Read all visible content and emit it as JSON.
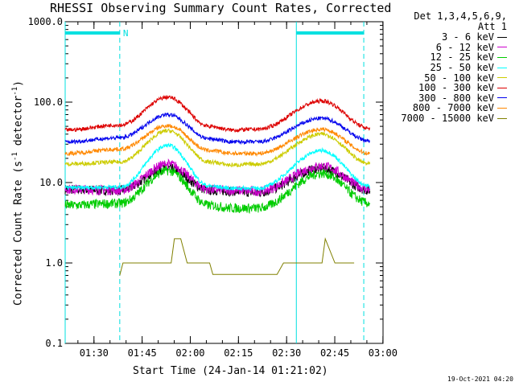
{
  "chart_data": {
    "type": "line",
    "title": "RHESSI Observing Summary Count Rates, Corrected",
    "xlabel": "Start Time (24-Jan-14 01:21:02)",
    "ylabel_main": "Corrected Count Rate (s",
    "ylabel_sup1": "-1",
    "ylabel_mid": " detector",
    "ylabel_sup2": "-1",
    "ylabel_end": ")",
    "y_scale": "log",
    "ylim": [
      0.1,
      1000
    ],
    "y_ticks": [
      "0.1",
      "1.0",
      "10.0",
      "100.0",
      "1000.0"
    ],
    "x_range_minutes": [
      "01:21:02",
      "03:00"
    ],
    "x_ticks": [
      "01:30",
      "01:45",
      "02:00",
      "02:15",
      "02:30",
      "02:45",
      "03:00"
    ],
    "legend_header": [
      "Det 1,3,4,5,6,9,",
      "Att 1"
    ],
    "legend_placement": "right-outside",
    "series": [
      {
        "name": "3 - 6 keV",
        "color": "#000000",
        "values": [
          [
            0,
            8.2
          ],
          [
            17,
            8.0
          ],
          [
            32,
            15
          ],
          [
            45,
            8.0
          ],
          [
            52,
            7.8
          ],
          [
            60,
            7.5
          ],
          [
            80,
            15
          ],
          [
            95,
            8.0
          ]
        ]
      },
      {
        "name": "6 - 12 keV",
        "color": "#cc00cc",
        "values": [
          [
            0,
            8.3
          ],
          [
            17,
            8.0
          ],
          [
            32,
            17
          ],
          [
            45,
            8.2
          ],
          [
            52,
            8.0
          ],
          [
            60,
            7.8
          ],
          [
            80,
            16
          ],
          [
            95,
            8.2
          ]
        ]
      },
      {
        "name": "12 - 25 keV",
        "color": "#00cc00",
        "values": [
          [
            0,
            5.2
          ],
          [
            17,
            5.5
          ],
          [
            32,
            14
          ],
          [
            45,
            5.2
          ],
          [
            52,
            4.8
          ],
          [
            60,
            4.8
          ],
          [
            80,
            13
          ],
          [
            95,
            5.5
          ]
        ]
      },
      {
        "name": "25 - 50 keV",
        "color": "#00ffff",
        "values": [
          [
            0,
            8.6
          ],
          [
            17,
            8.8
          ],
          [
            32,
            29
          ],
          [
            45,
            9.0
          ],
          [
            52,
            8.5
          ],
          [
            60,
            8.5
          ],
          [
            80,
            25
          ],
          [
            95,
            9.0
          ]
        ]
      },
      {
        "name": "50 - 100 keV",
        "color": "#cccc00",
        "values": [
          [
            0,
            17
          ],
          [
            17,
            18
          ],
          [
            32,
            44
          ],
          [
            45,
            18
          ],
          [
            52,
            16.5
          ],
          [
            60,
            17
          ],
          [
            80,
            40
          ],
          [
            95,
            17
          ]
        ]
      },
      {
        "name": "100 - 300 keV",
        "color": "#dd0000",
        "values": [
          [
            0,
            45
          ],
          [
            17,
            52
          ],
          [
            32,
            115
          ],
          [
            45,
            50
          ],
          [
            52,
            45
          ],
          [
            60,
            46
          ],
          [
            80,
            103
          ],
          [
            95,
            47
          ]
        ]
      },
      {
        "name": "300 - 800 keV",
        "color": "#0000ee",
        "values": [
          [
            0,
            32
          ],
          [
            17,
            36
          ],
          [
            32,
            70
          ],
          [
            45,
            35
          ],
          [
            52,
            32
          ],
          [
            60,
            32
          ],
          [
            80,
            63
          ],
          [
            95,
            33
          ]
        ]
      },
      {
        "name": "800 - 7000 keV",
        "color": "#ff8800",
        "values": [
          [
            0,
            23
          ],
          [
            17,
            26
          ],
          [
            32,
            51
          ],
          [
            45,
            25
          ],
          [
            52,
            23
          ],
          [
            60,
            23
          ],
          [
            80,
            46
          ],
          [
            95,
            23
          ]
        ]
      },
      {
        "name": "7000 - 15000 keV",
        "color": "#808000",
        "values": [
          [
            17,
            0.7
          ],
          [
            18,
            1.0
          ],
          [
            33,
            1.0
          ],
          [
            34,
            2.0
          ],
          [
            36,
            2.0
          ],
          [
            38,
            1.0
          ],
          [
            45,
            1.0
          ],
          [
            46,
            0.72
          ],
          [
            66,
            0.72
          ],
          [
            68,
            1.0
          ],
          [
            80,
            1.0
          ],
          [
            81,
            2.0
          ],
          [
            84,
            1.0
          ],
          [
            90,
            1.0
          ]
        ]
      }
    ],
    "saa_lines_minutes": [
      0,
      17,
      72,
      93
    ],
    "night_bars": [
      {
        "start": 0,
        "end": 17,
        "label": "N"
      },
      {
        "start": 72,
        "end": 93,
        "label": ""
      }
    ],
    "annotation_color": "#00e0e0"
  },
  "timestamp": "19-Oct-2021 04:20"
}
